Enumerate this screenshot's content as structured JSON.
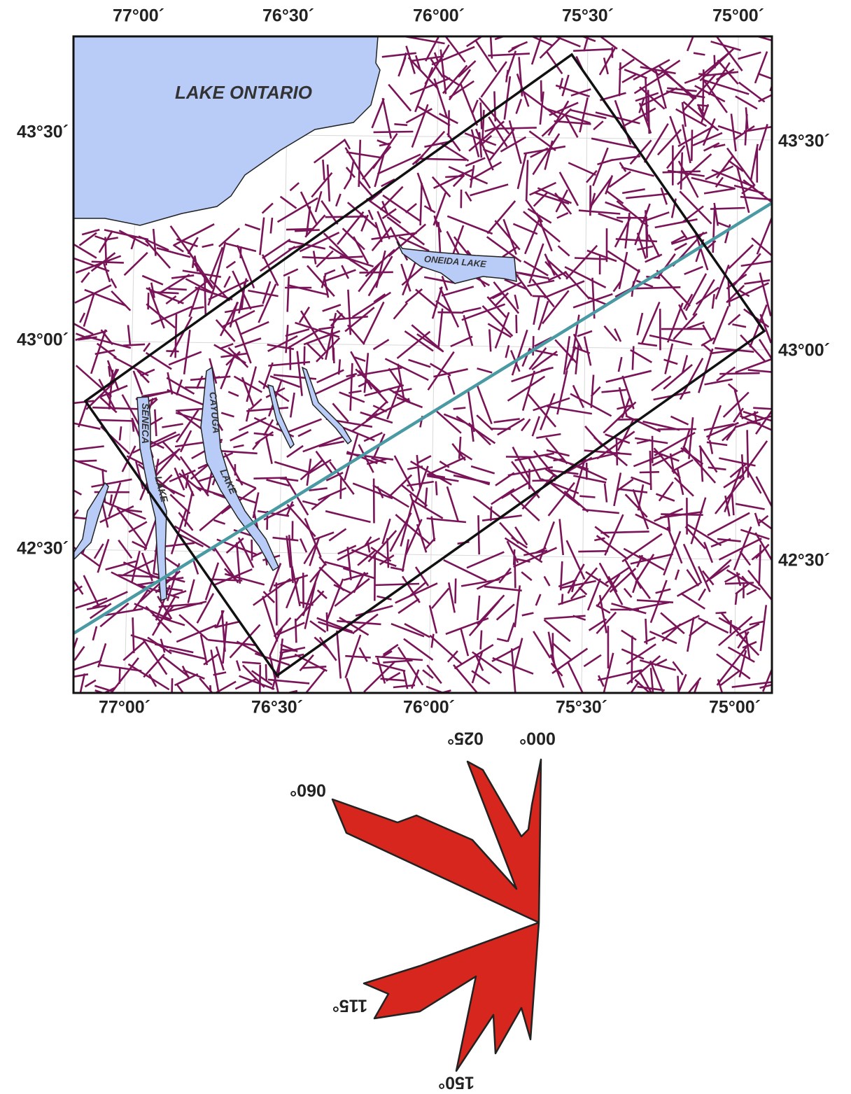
{
  "map": {
    "lon_ticks_top": [
      "77°00´",
      "76°30´",
      "76°00´",
      "75°30´",
      "75°00´"
    ],
    "lon_ticks_bottom": [
      "77°00´",
      "76°30´",
      "76°00´",
      "75°30´",
      "75°00´"
    ],
    "lat_ticks_left": [
      "43°30´",
      "43°00´",
      "42°30´"
    ],
    "lat_ticks_right": [
      "43°30´",
      "43°00´",
      "42°30´"
    ],
    "lakes": {
      "ontario": "LAKE ONTARIO",
      "oneida": "ONEIDA LAKE",
      "seneca_1": "SENECA",
      "seneca_2": "LAKE",
      "cayuga_1": "CAYUGA",
      "cayuga_2": "LAKE"
    }
  },
  "rose": {
    "labels": [
      "000°",
      "025°",
      "060°",
      "115°",
      "150°"
    ]
  }
}
